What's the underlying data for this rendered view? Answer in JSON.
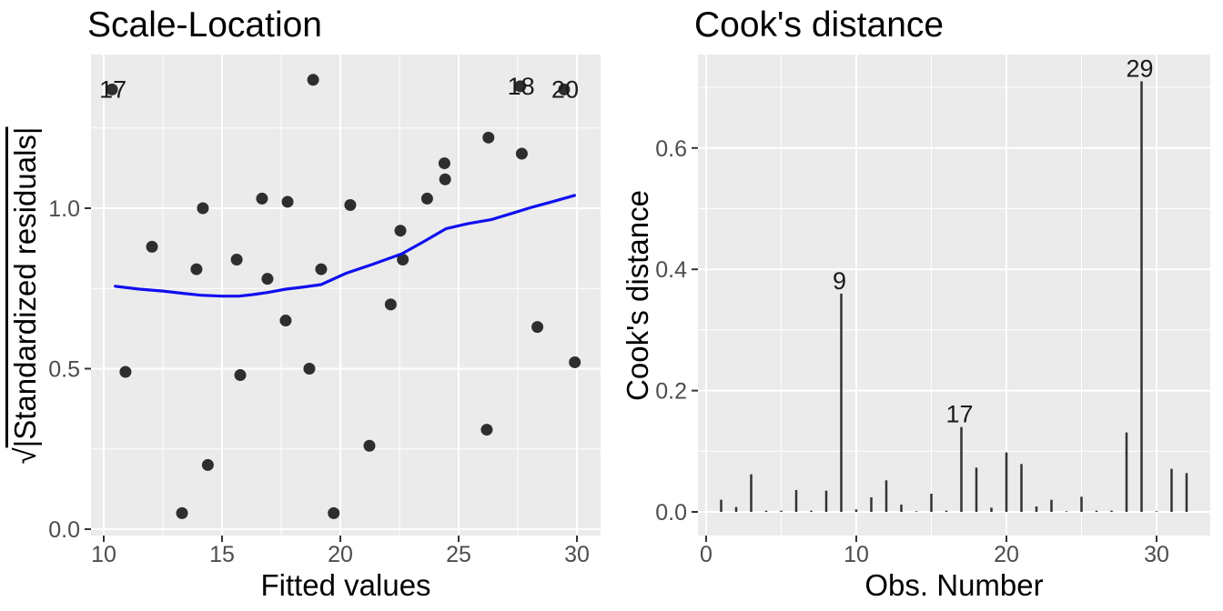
{
  "figure": {
    "panel_background": "#ebebeb",
    "grid_color": "#ffffff",
    "tick_color": "#333333",
    "tick_label_color": "#4d4d4d",
    "point_color": "#2e2e2e",
    "bar_color": "#333333",
    "smooth_color": "#0f0fef",
    "point_label_color": "#1a1a1a",
    "title_color": "#000000"
  },
  "chart_data": [
    {
      "id": "scale_location",
      "type": "scatter",
      "title": "Scale-Location",
      "xlabel": "Fitted values",
      "ylabel": "√|Standardized residuals|",
      "ylabel_sqrt_prefix": "√",
      "ylabel_sqrt_inner": "|Standardized residuals|",
      "xlim": [
        9.4,
        31.0
      ],
      "ylim": [
        -0.02,
        1.48
      ],
      "grid": true,
      "legend": "none",
      "x_ticks": [
        {
          "v": 10,
          "label": "10"
        },
        {
          "v": 15,
          "label": "15"
        },
        {
          "v": 20,
          "label": "20"
        },
        {
          "v": 25,
          "label": "25"
        },
        {
          "v": 30,
          "label": "30"
        }
      ],
      "y_ticks": [
        {
          "v": 0.0,
          "label": "0.0"
        },
        {
          "v": 0.5,
          "label": "0.5"
        },
        {
          "v": 1.0,
          "label": "1.0"
        }
      ],
      "x_minor": [
        12.5,
        17.5,
        22.5,
        27.5
      ],
      "y_minor": [
        0.25,
        0.75,
        1.25
      ],
      "points": [
        {
          "x": 10.35,
          "y": 1.37,
          "label": "17"
        },
        {
          "x": 10.92,
          "y": 0.49
        },
        {
          "x": 12.04,
          "y": 0.88
        },
        {
          "x": 13.31,
          "y": 0.05
        },
        {
          "x": 13.92,
          "y": 0.81
        },
        {
          "x": 14.19,
          "y": 1.0
        },
        {
          "x": 14.4,
          "y": 0.2
        },
        {
          "x": 15.62,
          "y": 0.84
        },
        {
          "x": 15.77,
          "y": 0.48
        },
        {
          "x": 16.69,
          "y": 1.03
        },
        {
          "x": 16.92,
          "y": 0.78
        },
        {
          "x": 17.69,
          "y": 0.65
        },
        {
          "x": 17.77,
          "y": 1.02
        },
        {
          "x": 18.69,
          "y": 0.5
        },
        {
          "x": 18.85,
          "y": 1.4
        },
        {
          "x": 19.19,
          "y": 0.81
        },
        {
          "x": 19.72,
          "y": 0.05
        },
        {
          "x": 20.42,
          "y": 1.01
        },
        {
          "x": 21.23,
          "y": 0.26
        },
        {
          "x": 22.13,
          "y": 0.7
        },
        {
          "x": 22.54,
          "y": 0.93
        },
        {
          "x": 22.64,
          "y": 0.84
        },
        {
          "x": 23.67,
          "y": 1.03
        },
        {
          "x": 24.4,
          "y": 1.14
        },
        {
          "x": 24.43,
          "y": 1.09
        },
        {
          "x": 26.19,
          "y": 0.31
        },
        {
          "x": 26.26,
          "y": 1.22
        },
        {
          "x": 27.6,
          "y": 1.38,
          "label": "18"
        },
        {
          "x": 27.67,
          "y": 1.17
        },
        {
          "x": 28.33,
          "y": 0.63
        },
        {
          "x": 29.46,
          "y": 1.37,
          "label": "20"
        },
        {
          "x": 29.91,
          "y": 0.52
        }
      ],
      "smooth_line": [
        [
          10.49,
          0.757
        ],
        [
          11.5,
          0.748
        ],
        [
          12.5,
          0.742
        ],
        [
          13.3,
          0.735
        ],
        [
          14.1,
          0.729
        ],
        [
          15.0,
          0.726
        ],
        [
          15.72,
          0.726
        ],
        [
          16.3,
          0.731
        ],
        [
          16.9,
          0.737
        ],
        [
          17.7,
          0.748
        ],
        [
          18.5,
          0.755
        ],
        [
          19.19,
          0.762
        ],
        [
          20.23,
          0.797
        ],
        [
          21.4,
          0.826
        ],
        [
          22.6,
          0.858
        ],
        [
          23.5,
          0.895
        ],
        [
          24.46,
          0.936
        ],
        [
          25.4,
          0.952
        ],
        [
          26.4,
          0.965
        ],
        [
          27.3,
          0.985
        ],
        [
          28.1,
          1.003
        ],
        [
          29.0,
          1.021
        ],
        [
          29.9,
          1.04
        ]
      ]
    },
    {
      "id": "cooks_distance",
      "type": "bar",
      "title": "Cook's distance",
      "xlabel": "Obs. Number",
      "ylabel": "Cook's distance",
      "xlim": [
        -0.6,
        33.6
      ],
      "ylim": [
        -0.04,
        0.75
      ],
      "grid": true,
      "legend": "none",
      "x_ticks": [
        {
          "v": 0,
          "label": "0"
        },
        {
          "v": 10,
          "label": "10"
        },
        {
          "v": 20,
          "label": "20"
        },
        {
          "v": 30,
          "label": "30"
        }
      ],
      "y_ticks": [
        {
          "v": 0.0,
          "label": "0.0"
        },
        {
          "v": 0.2,
          "label": "0.2"
        },
        {
          "v": 0.4,
          "label": "0.4"
        },
        {
          "v": 0.6,
          "label": "0.6"
        }
      ],
      "x_minor": [
        5,
        15,
        25
      ],
      "y_minor": [
        0.1,
        0.3,
        0.5,
        0.7
      ],
      "categories": [
        1,
        2,
        3,
        4,
        5,
        6,
        7,
        8,
        9,
        10,
        11,
        12,
        13,
        14,
        15,
        16,
        17,
        18,
        19,
        20,
        21,
        22,
        23,
        24,
        25,
        26,
        27,
        28,
        29,
        30,
        31,
        32
      ],
      "values": [
        0.02,
        0.008,
        0.062,
        0.002,
        0.002,
        0.036,
        0.002,
        0.035,
        0.36,
        0.004,
        0.024,
        0.052,
        0.012,
        0.001,
        0.03,
        0.002,
        0.14,
        0.073,
        0.007,
        0.098,
        0.079,
        0.009,
        0.02,
        0.001,
        0.025,
        0.002,
        0.002,
        0.131,
        0.71,
        0.001,
        0.071,
        0.064
      ],
      "bar_labels": [
        {
          "obs": 9,
          "text": "9"
        },
        {
          "obs": 17,
          "text": "17"
        },
        {
          "obs": 29,
          "text": "29"
        }
      ]
    }
  ]
}
